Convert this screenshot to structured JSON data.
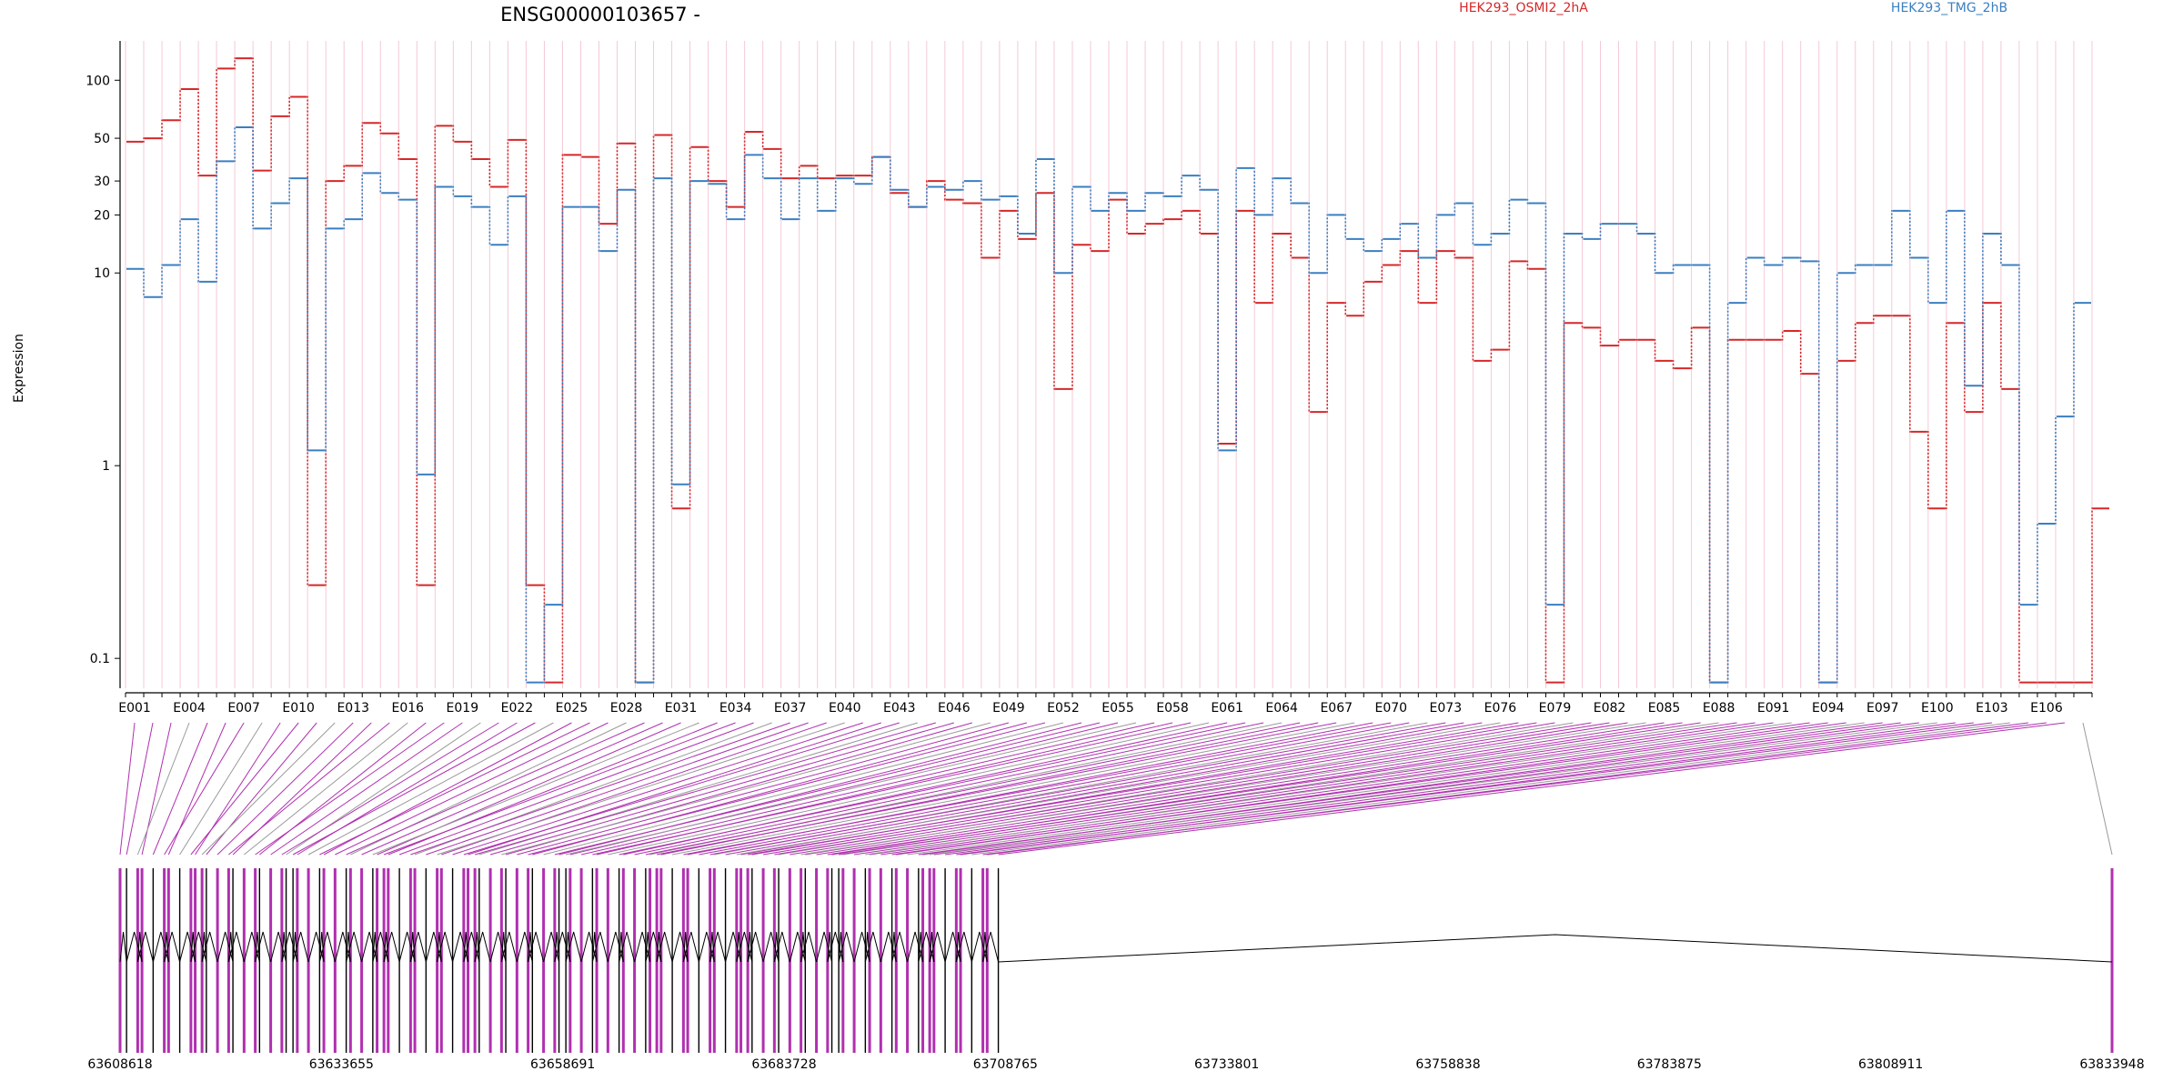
{
  "title": "ENSG00000103657 -",
  "colors": {
    "series_a": "#d62728",
    "series_b": "#3a7fc1",
    "exon_marker": "#b030b0",
    "connector_alt": "#9a9a9a",
    "grid": "#f4c9d6",
    "axis": "#000000"
  },
  "chart_data": {
    "type": "line",
    "title": "ENSG00000103657 -",
    "xlabel": "",
    "ylabel": "Expression",
    "yscale": "log",
    "ylim": [
      0.07,
      160
    ],
    "yticks": [
      "100",
      "50",
      "30",
      "20",
      "10",
      "1",
      "0.1"
    ],
    "grid": true,
    "legend": "top-right",
    "bin_labels": [
      "E001",
      "E004",
      "E007",
      "E010",
      "E013",
      "E016",
      "E019",
      "E022",
      "E025",
      "E028",
      "E031",
      "E034",
      "E037",
      "E040",
      "E043",
      "E046",
      "E049",
      "E052",
      "E055",
      "E058",
      "E061",
      "E064",
      "E067",
      "E070",
      "E073",
      "E076",
      "E079",
      "E082",
      "E085",
      "E088",
      "E091",
      "E094",
      "E097",
      "E100",
      "E103",
      "E106"
    ],
    "n_bins": 108,
    "series": [
      {
        "name": "HEK293_OSMI2_2hA",
        "values": [
          48,
          50,
          62,
          90,
          32,
          115,
          130,
          34,
          65,
          82,
          0.24,
          30,
          36,
          60,
          53,
          39,
          0.24,
          58,
          48,
          39,
          28,
          49,
          0.24,
          0.075,
          41,
          40,
          18,
          47,
          0.075,
          52,
          0.6,
          45,
          30,
          22,
          54,
          44,
          31,
          36,
          31,
          32,
          32,
          40,
          26,
          22,
          30,
          24,
          23,
          12,
          21,
          15,
          26,
          2.5,
          14,
          13,
          24,
          16,
          18,
          19,
          21,
          16,
          1.3,
          21,
          7,
          16,
          12,
          1.9,
          7,
          6,
          9,
          11,
          13,
          7,
          13,
          12,
          3.5,
          4,
          11.5,
          10.5,
          0.075,
          5.5,
          5.2,
          4.2,
          4.5,
          4.5,
          3.5,
          3.2,
          5.2,
          0.075,
          4.5,
          4.5,
          4.5,
          5,
          3,
          0.075,
          3.5,
          5.5,
          6,
          6,
          1.5,
          0.6,
          5.5,
          1.9,
          7,
          2.5,
          0.075,
          0.075,
          0.075,
          0.075,
          0.6
        ]
      },
      {
        "name": "HEK293_TMG_2hB",
        "values": [
          10.5,
          7.5,
          11,
          19,
          9,
          38,
          57,
          17,
          23,
          31,
          1.2,
          17,
          19,
          33,
          26,
          24,
          0.9,
          28,
          25,
          22,
          14,
          25,
          0.075,
          0.19,
          22,
          22,
          13,
          27,
          0.075,
          31,
          0.8,
          30,
          29,
          19,
          41,
          31,
          19,
          31,
          21,
          31,
          29,
          40,
          27,
          22,
          28,
          27,
          30,
          24,
          25,
          16,
          39,
          10,
          28,
          21,
          26,
          21,
          26,
          25,
          32,
          27,
          1.2,
          35,
          20,
          31,
          23,
          10,
          20,
          15,
          13,
          15,
          18,
          12,
          20,
          23,
          14,
          16,
          24,
          23,
          0.19,
          16,
          15,
          18,
          18,
          16,
          10,
          11,
          11,
          0.075,
          7,
          12,
          11,
          12,
          11.5,
          0.075,
          10,
          11,
          11,
          21,
          12,
          7,
          21,
          2.6,
          16,
          11,
          0.19,
          0.5,
          1.8,
          7
        ]
      }
    ],
    "genome_axis": {
      "tick_labels": [
        "63608618",
        "63633655",
        "63658691",
        "63683728",
        "63708765",
        "63733801",
        "63758838",
        "63783875",
        "63808911",
        "63833948"
      ],
      "range": [
        63608618,
        63833948
      ]
    }
  }
}
